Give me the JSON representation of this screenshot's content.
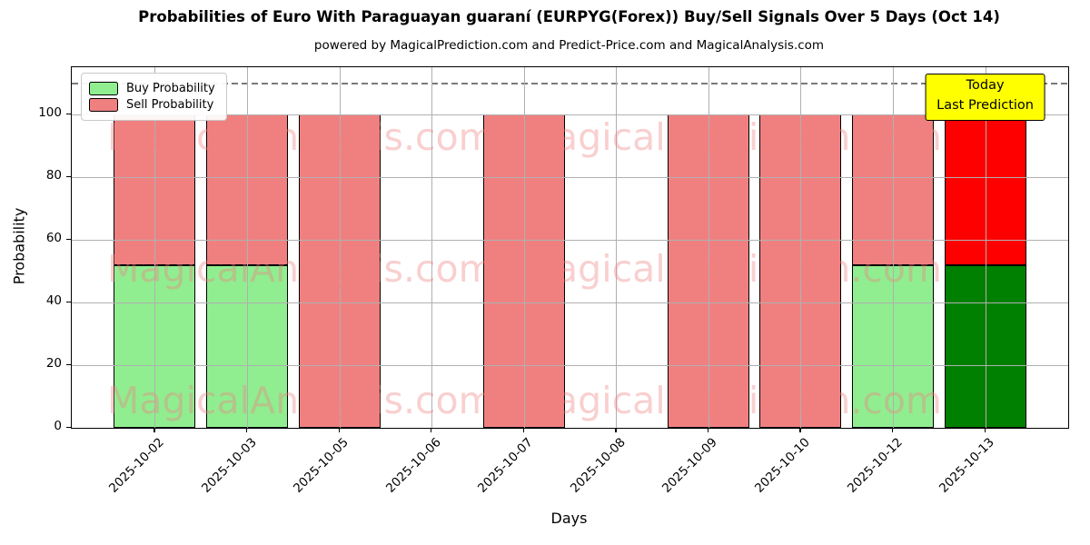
{
  "figure": {
    "title": "Probabilities of Euro With Paraguayan guaraní (EURPYG(Forex)) Buy/Sell Signals Over 5 Days (Oct 14)",
    "subtitle": "powered by MagicalPrediction.com and Predict-Price.com and MagicalAnalysis.com"
  },
  "axes": {
    "x_label": "Days",
    "y_label": "Probability",
    "y_ticks": [
      0,
      20,
      40,
      60,
      80,
      100
    ]
  },
  "legend": {
    "items": [
      {
        "label": "Buy Probability",
        "color": "#90EE90"
      },
      {
        "label": "Sell Probability",
        "color": "#F08080"
      }
    ]
  },
  "annotation": {
    "lines": [
      "Today",
      "Last Prediction"
    ],
    "bg_color": "#FFFF00"
  },
  "watermarks": {
    "texts": [
      "MagicalAnalysis.com",
      "MagicalPrediction.com"
    ],
    "color": "#F08080"
  },
  "chart_data": {
    "type": "bar",
    "stacked": true,
    "title": "Probabilities of Euro With Paraguayan guaraní (EURPYG(Forex)) Buy/Sell Signals Over 5 Days (Oct 14)",
    "xlabel": "Days",
    "ylabel": "Probability",
    "categories": [
      "2025-10-02",
      "2025-10-03",
      "2025-10-05",
      "2025-10-06",
      "2025-10-07",
      "2025-10-08",
      "2025-10-09",
      "2025-10-10",
      "2025-10-12",
      "2025-10-13"
    ],
    "series": [
      {
        "name": "Buy Probability",
        "values": [
          52,
          52,
          0,
          null,
          0,
          null,
          0,
          0,
          52,
          52
        ],
        "colors": [
          "#90EE90",
          "#90EE90",
          "#90EE90",
          null,
          "#90EE90",
          null,
          "#90EE90",
          "#90EE90",
          "#90EE90",
          "#008000"
        ]
      },
      {
        "name": "Sell Probability",
        "values": [
          48,
          48,
          100,
          null,
          100,
          null,
          100,
          100,
          48,
          48
        ],
        "colors": [
          "#F08080",
          "#F08080",
          "#F08080",
          null,
          "#F08080",
          null,
          "#F08080",
          "#F08080",
          "#F08080",
          "#FF0000"
        ]
      }
    ],
    "ylim": [
      0,
      115
    ],
    "threshold_line": {
      "y": 110,
      "style": "dashed",
      "color": "#808080"
    },
    "grid": true,
    "bar_edge_color": "#000000",
    "legend_position": "upper left",
    "highlight_last_bar": {
      "buy_color": "#008000",
      "sell_color": "#FF0000"
    }
  }
}
